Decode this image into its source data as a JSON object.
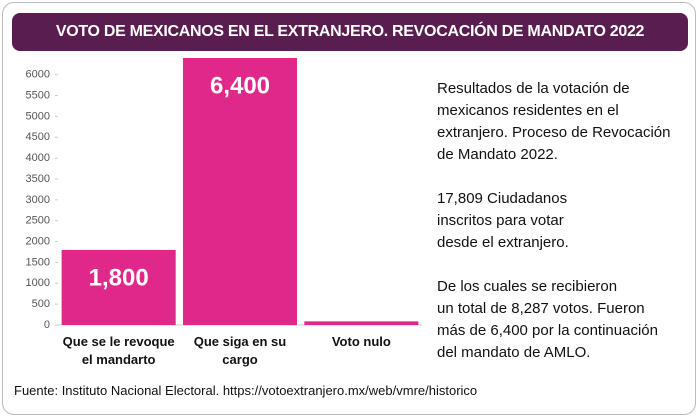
{
  "chart_data": {
    "type": "bar",
    "title": "VOTO DE MEXICANOS EN EL EXTRANJERO. REVOCACIÓN DE MANDATO 2022",
    "categories": [
      "Que se le revoque el mandarto",
      "Que siga en su cargo",
      "Voto nulo"
    ],
    "values": [
      1800,
      6400,
      87
    ],
    "value_labels": [
      "1,800",
      "6,400",
      null
    ],
    "color": "#e0288a",
    "ylim": [
      0,
      6400
    ],
    "yticks": [
      0,
      500,
      1000,
      1500,
      2000,
      2500,
      3000,
      3500,
      4000,
      4500,
      5000,
      5500,
      6000
    ],
    "grid": false,
    "annotations": [
      [
        "Resultados de la votación de",
        "mexicanos residentes en el",
        "extranjero. Proceso de Revocación",
        "de Mandato 2022."
      ],
      [
        "17,809 Ciudadanos",
        "inscritos para votar",
        "desde el extranjero."
      ],
      [
        "De los cuales se recibieron",
        "un total de 8,287 votos. Fueron",
        "más de 6,400 por la continuación",
        "del mandato de AMLO."
      ]
    ],
    "source": "Fuente: Instituto Nacional Electoral. https://votoextranjero.mx/web/vmre/historico"
  }
}
